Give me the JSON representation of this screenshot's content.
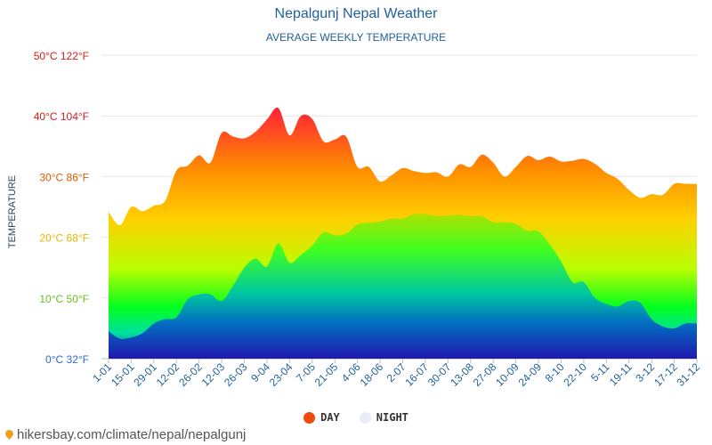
{
  "chart_data": {
    "type": "area",
    "title": "Nepalgunj Nepal Weather",
    "subtitle": "AVERAGE WEEKLY TEMPERATURE",
    "ylabel": "TEMPERATURE",
    "ylim": [
      0,
      50
    ],
    "yticks": [
      {
        "value": 0,
        "label": "0°C 32°F",
        "color": "#2a6ad8"
      },
      {
        "value": 10,
        "label": "10°C 50°F",
        "color": "#6cc020"
      },
      {
        "value": 20,
        "label": "20°C 68°F",
        "color": "#e6b800"
      },
      {
        "value": 30,
        "label": "30°C 86°F",
        "color": "#e05a00"
      },
      {
        "value": 40,
        "label": "40°C 104°F",
        "color": "#d81c1c"
      },
      {
        "value": 50,
        "label": "50°C 122°F",
        "color": "#d81c1c"
      }
    ],
    "x_ticks": [
      "1-01",
      "15-01",
      "29-01",
      "12-02",
      "26-02",
      "12-03",
      "26-03",
      "9-04",
      "23-04",
      "7-05",
      "21-05",
      "4-06",
      "18-06",
      "2-07",
      "16-07",
      "30-07",
      "13-08",
      "27-08",
      "10-09",
      "24-09",
      "8-10",
      "22-10",
      "5-11",
      "19-11",
      "3-12",
      "17-12",
      "31-12"
    ],
    "x": [
      "1-01",
      "8-01",
      "15-01",
      "22-01",
      "29-01",
      "5-02",
      "12-02",
      "19-02",
      "26-02",
      "5-03",
      "12-03",
      "19-03",
      "26-03",
      "2-04",
      "9-04",
      "16-04",
      "23-04",
      "30-04",
      "7-05",
      "14-05",
      "21-05",
      "28-05",
      "4-06",
      "11-06",
      "18-06",
      "25-06",
      "2-07",
      "9-07",
      "16-07",
      "23-07",
      "30-07",
      "6-08",
      "13-08",
      "20-08",
      "27-08",
      "3-09",
      "10-09",
      "17-09",
      "24-09",
      "1-10",
      "8-10",
      "15-10",
      "22-10",
      "29-10",
      "5-11",
      "12-11",
      "19-11",
      "26-11",
      "3-12",
      "10-12",
      "17-12",
      "24-12",
      "31-12"
    ],
    "series": [
      {
        "name": "DAY",
        "color": "#f04a10",
        "values": [
          24.2,
          22.0,
          25.0,
          24.3,
          25.2,
          26.0,
          31.0,
          31.8,
          33.5,
          32.3,
          37.2,
          36.6,
          36.3,
          37.4,
          39.4,
          41.3,
          36.8,
          40.0,
          39.5,
          35.8,
          36.1,
          36.6,
          31.6,
          31.6,
          29.2,
          30.2,
          31.4,
          30.9,
          30.6,
          30.7,
          30.0,
          32.0,
          31.6,
          33.6,
          32.3,
          30.0,
          31.6,
          33.4,
          32.7,
          33.3,
          32.5,
          32.6,
          32.9,
          32.1,
          30.6,
          29.6,
          27.8,
          26.5,
          27.1,
          27.0,
          28.8,
          28.8,
          28.8
        ]
      },
      {
        "name": "NIGHT",
        "color": "#e8eef5",
        "values": [
          4.5,
          3.3,
          3.5,
          4.2,
          5.8,
          6.5,
          6.8,
          9.8,
          10.6,
          10.6,
          9.5,
          12.0,
          15.0,
          16.5,
          15.2,
          19.0,
          15.8,
          17.1,
          18.6,
          20.8,
          20.3,
          20.6,
          22.1,
          22.4,
          22.6,
          23.1,
          23.1,
          23.8,
          23.8,
          23.5,
          23.6,
          23.7,
          23.5,
          23.5,
          22.5,
          22.5,
          22.2,
          21.1,
          21.0,
          18.8,
          16.0,
          12.6,
          12.6,
          10.0,
          9.0,
          8.6,
          9.5,
          9.2,
          6.5,
          5.3,
          5.0,
          5.8,
          5.8
        ]
      }
    ],
    "legend_position": "bottom-center",
    "grid": true
  },
  "watermark": "hikersbay.com/climate/nepal/nepalgunj"
}
